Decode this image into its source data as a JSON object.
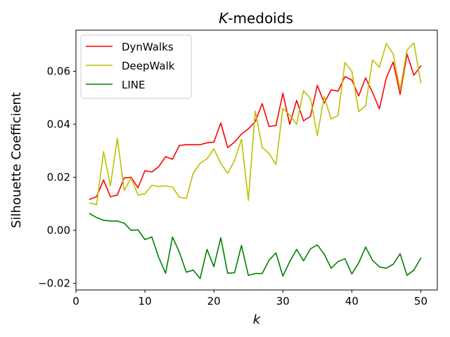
{
  "chart_data": {
    "type": "line",
    "title_italic": "K",
    "title_rest": "-medoids",
    "xlabel": "k",
    "ylabel": "Silhouette Coefficient",
    "xlim": [
      0,
      52.4
    ],
    "ylim": [
      -0.0225,
      0.0755
    ],
    "xticks": [
      0,
      10,
      20,
      30,
      40,
      50
    ],
    "yticks": [
      -0.02,
      0.0,
      0.02,
      0.04,
      0.06
    ],
    "ytick_labels": [
      "−0.02",
      "0.00",
      "0.02",
      "0.04",
      "0.06"
    ],
    "legend_position": "top-left",
    "grid": false,
    "x": [
      2,
      3,
      4,
      5,
      6,
      7,
      8,
      9,
      10,
      11,
      12,
      13,
      14,
      15,
      16,
      17,
      18,
      19,
      20,
      21,
      22,
      23,
      24,
      25,
      26,
      27,
      28,
      29,
      30,
      31,
      32,
      33,
      34,
      35,
      36,
      37,
      38,
      39,
      40,
      41,
      42,
      43,
      44,
      45,
      46,
      47,
      48,
      49,
      50
    ],
    "series": [
      {
        "name": "DynWalks",
        "color": "#ff0000",
        "values": [
          0.0117,
          0.0127,
          0.019,
          0.0127,
          0.0133,
          0.0198,
          0.02,
          0.016,
          0.0225,
          0.022,
          0.024,
          0.0278,
          0.0268,
          0.032,
          0.0323,
          0.0323,
          0.0323,
          0.033,
          0.0333,
          0.0405,
          0.0312,
          0.0333,
          0.0363,
          0.0383,
          0.041,
          0.0478,
          0.0392,
          0.0395,
          0.0517,
          0.04,
          0.049,
          0.0413,
          0.043,
          0.0547,
          0.048,
          0.053,
          0.0525,
          0.058,
          0.0567,
          0.0507,
          0.0575,
          0.052,
          0.0458,
          0.0575,
          0.0635,
          0.0513,
          0.0665,
          0.0585,
          0.062
        ]
      },
      {
        "name": "DeepWalk",
        "color": "#bfbf00",
        "values": [
          0.0103,
          0.0097,
          0.0297,
          0.0167,
          0.0347,
          0.015,
          0.0197,
          0.0133,
          0.0138,
          0.017,
          0.0165,
          0.0168,
          0.0163,
          0.0125,
          0.012,
          0.0215,
          0.0253,
          0.027,
          0.0307,
          0.0253,
          0.0215,
          0.0263,
          0.0343,
          0.0113,
          0.045,
          0.0313,
          0.029,
          0.0248,
          0.046,
          0.0435,
          0.04,
          0.0527,
          0.0497,
          0.0357,
          0.0505,
          0.042,
          0.0433,
          0.0633,
          0.06,
          0.0448,
          0.047,
          0.0643,
          0.0615,
          0.0705,
          0.0665,
          0.053,
          0.068,
          0.0707,
          0.0557
        ]
      },
      {
        "name": "LINE",
        "color": "#008000",
        "values": [
          0.0063,
          0.0048,
          0.0038,
          0.0035,
          0.0035,
          0.0027,
          0.0,
          0.0002,
          -0.0035,
          -0.0025,
          -0.0102,
          -0.0162,
          -0.0025,
          -0.0083,
          -0.0158,
          -0.015,
          -0.0182,
          -0.0072,
          -0.0137,
          -0.0028,
          -0.0162,
          -0.016,
          -0.0057,
          -0.017,
          -0.0163,
          -0.0163,
          -0.0113,
          -0.0085,
          -0.0173,
          -0.0118,
          -0.0072,
          -0.0115,
          -0.007,
          -0.0055,
          -0.009,
          -0.0143,
          -0.0118,
          -0.0107,
          -0.0165,
          -0.0123,
          -0.0063,
          -0.0113,
          -0.0138,
          -0.0143,
          -0.0128,
          -0.0088,
          -0.017,
          -0.015,
          -0.0105
        ]
      }
    ]
  }
}
